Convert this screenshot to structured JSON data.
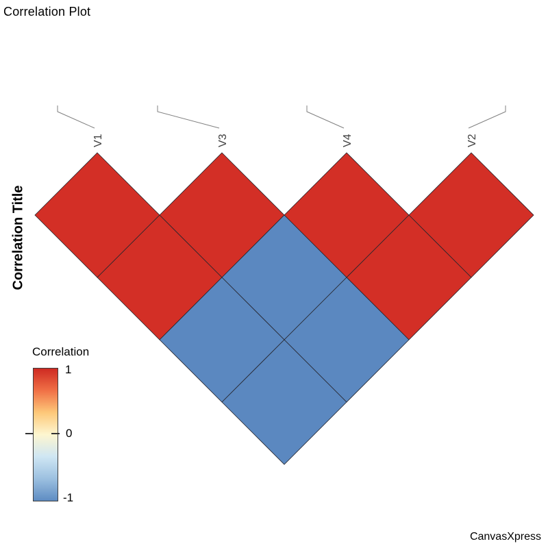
{
  "title": "Correlation Plot",
  "y_axis_title": "Correlation Title",
  "watermark": "CanvasXpress",
  "legend": {
    "title": "Correlation",
    "tick_labels": [
      "1",
      "0",
      "-1"
    ]
  },
  "chart_data": {
    "type": "heatmap",
    "subtype": "correlation-triangle",
    "title": "Correlation Plot",
    "axis_title": "Correlation Title",
    "variables": [
      "V1",
      "V3",
      "V4",
      "V2"
    ],
    "legend": {
      "title": "Correlation",
      "ticks": [
        1,
        0,
        -1
      ],
      "range": [
        -1,
        1
      ],
      "position": "left"
    },
    "colors": {
      "positive": "#d32f26",
      "negative": "#5b88c0",
      "border": "#26262e",
      "leader_line": "#808080",
      "scale_top_to_bottom": [
        "#ce2a22",
        "#f07046",
        "#fdc879",
        "#fdf6d0",
        "#cfe6f3",
        "#9cc0e0",
        "#5e8cc2"
      ]
    },
    "cells": [
      {
        "row": "V1",
        "col": "V1",
        "value": 1
      },
      {
        "row": "V3",
        "col": "V3",
        "value": 1
      },
      {
        "row": "V4",
        "col": "V4",
        "value": 1
      },
      {
        "row": "V2",
        "col": "V2",
        "value": 1
      },
      {
        "row": "V1",
        "col": "V3",
        "value": 1
      },
      {
        "row": "V3",
        "col": "V4",
        "value": -1
      },
      {
        "row": "V4",
        "col": "V2",
        "value": 1
      },
      {
        "row": "V1",
        "col": "V4",
        "value": -1
      },
      {
        "row": "V3",
        "col": "V2",
        "value": -1
      },
      {
        "row": "V1",
        "col": "V2",
        "value": -1
      }
    ]
  }
}
